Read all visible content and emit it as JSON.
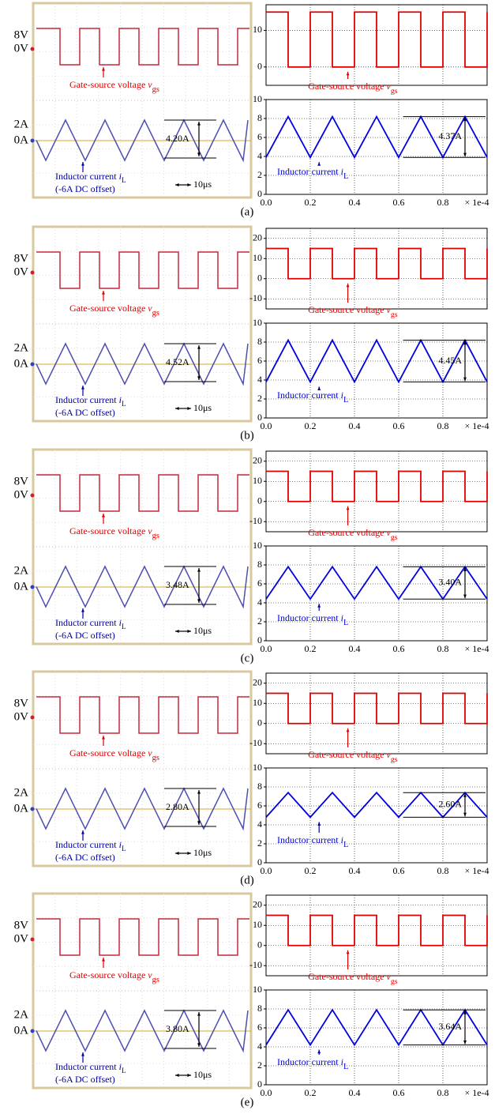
{
  "panel_labels": [
    "(a)",
    "(b)",
    "(c)",
    "(d)",
    "(e)"
  ],
  "scopes": [
    {
      "v_ticks": [
        "8V",
        "0V"
      ],
      "i_ticks": [
        "2A",
        "0A"
      ],
      "vgs_label": {
        "text": "Gate-source voltage ",
        "var": "v",
        "sub": "gs"
      },
      "il_label": {
        "text": "Inductor current ",
        "var": "i",
        "sub": "L"
      },
      "offset_note": "(-6A DC offset)",
      "time_scale": "10μs",
      "ripple": "4.20A"
    },
    {
      "v_ticks": [
        "8V",
        "0V"
      ],
      "i_ticks": [
        "2A",
        "0A"
      ],
      "vgs_label": {
        "text": "Gate-source voltage ",
        "var": "v",
        "sub": "gs"
      },
      "il_label": {
        "text": "Inductor current ",
        "var": "i",
        "sub": "L"
      },
      "offset_note": "(-6A DC offset)",
      "time_scale": "10μs",
      "ripple": "4.52A"
    },
    {
      "v_ticks": [
        "8V",
        "0V"
      ],
      "i_ticks": [
        "2A",
        "0A"
      ],
      "vgs_label": {
        "text": "Gate-source voltage ",
        "var": "v",
        "sub": "gs"
      },
      "il_label": {
        "text": "Inductor current ",
        "var": "i",
        "sub": "L"
      },
      "offset_note": "(-6A DC offset)",
      "time_scale": "10μs",
      "ripple": "3.48A"
    },
    {
      "v_ticks": [
        "8V",
        "0V"
      ],
      "i_ticks": [
        "2A",
        "0A"
      ],
      "vgs_label": {
        "text": "Gate-source voltage ",
        "var": "v",
        "sub": "gs"
      },
      "il_label": {
        "text": "Inductor current ",
        "var": "i",
        "sub": "L"
      },
      "offset_note": "(-6A DC offset)",
      "time_scale": "10μs",
      "ripple": "2.80A"
    },
    {
      "v_ticks": [
        "8V",
        "0V"
      ],
      "i_ticks": [
        "2A",
        "0A"
      ],
      "vgs_label": {
        "text": "Gate-source voltage ",
        "var": "v",
        "sub": "gs"
      },
      "il_label": {
        "text": "Inductor current ",
        "var": "i",
        "sub": "L"
      },
      "offset_note": "(-6A DC offset)",
      "time_scale": "10μs",
      "ripple": "3.80A"
    }
  ],
  "chart_data": [
    {
      "type": "line",
      "xlim": [
        0,
        1
      ],
      "xticks": [
        0.2,
        0.4,
        0.6,
        0.8
      ],
      "show_xtick_labels": false,
      "ylim": [
        -5,
        17
      ],
      "yticks": [
        0,
        10
      ],
      "grid": true,
      "x": [
        0,
        0.1,
        0.1,
        0.2,
        0.2,
        0.3,
        0.3,
        0.4,
        0.4,
        0.5,
        0.5,
        0.6,
        0.6,
        0.7,
        0.7,
        0.8,
        0.8,
        0.9,
        0.9,
        1,
        1
      ],
      "series": [
        {
          "color": "#e00000",
          "values": [
            15,
            15,
            0,
            0,
            15,
            15,
            0,
            0,
            15,
            15,
            0,
            0,
            15,
            15,
            0,
            0,
            15,
            15,
            0,
            0,
            15
          ]
        }
      ],
      "annotation": {
        "text": "Gate-source voltage ",
        "var": "v",
        "sub": "gs"
      }
    },
    {
      "type": "line",
      "xlim": [
        0,
        1
      ],
      "xticks": [
        {
          "value": 0,
          "label": "0.0"
        },
        {
          "value": 0.2,
          "label": "0.2"
        },
        {
          "value": 0.4,
          "label": "0.4"
        },
        {
          "value": 0.6,
          "label": "0.6"
        },
        {
          "value": 0.8,
          "label": "0.8"
        }
      ],
      "show_xtick_labels": true,
      "x_axis_label": "× 1e-4",
      "ylim": [
        0,
        10
      ],
      "yticks": [
        0,
        2,
        4,
        6,
        8,
        10
      ],
      "grid": true,
      "x": [
        0,
        0.1,
        0.2,
        0.3,
        0.4,
        0.5,
        0.6,
        0.7,
        0.8,
        0.9,
        1
      ],
      "series": [
        {
          "color": "#0000e0",
          "values": [
            3.9,
            8.2,
            3.9,
            8.2,
            3.9,
            8.2,
            3.9,
            8.2,
            3.9,
            8.2,
            3.9
          ]
        }
      ],
      "annotation": {
        "text": "Inductor current ",
        "var": "i",
        "sub": "L"
      },
      "ripple": "4.37A"
    },
    {
      "type": "line",
      "xlim": [
        0,
        1
      ],
      "xticks": [
        0.2,
        0.4,
        0.6,
        0.8
      ],
      "show_xtick_labels": false,
      "ylim": [
        -15,
        25
      ],
      "yticks": [
        -10,
        0,
        10,
        20
      ],
      "grid": true,
      "x": [
        0,
        0.1,
        0.1,
        0.2,
        0.2,
        0.3,
        0.3,
        0.4,
        0.4,
        0.5,
        0.5,
        0.6,
        0.6,
        0.7,
        0.7,
        0.8,
        0.8,
        0.9,
        0.9,
        1,
        1
      ],
      "series": [
        {
          "color": "#e00000",
          "values": [
            15,
            15,
            0,
            0,
            15,
            15,
            0,
            0,
            15,
            15,
            0,
            0,
            15,
            15,
            0,
            0,
            15,
            15,
            0,
            0,
            15
          ]
        }
      ],
      "annotation": {
        "text": "Gate-source voltage ",
        "var": "v",
        "sub": "gs"
      }
    },
    {
      "type": "line",
      "xlim": [
        0,
        1
      ],
      "xticks": [
        {
          "value": 0,
          "label": "0.0"
        },
        {
          "value": 0.2,
          "label": "0.2"
        },
        {
          "value": 0.4,
          "label": "0.4"
        },
        {
          "value": 0.6,
          "label": "0.6"
        },
        {
          "value": 0.8,
          "label": "0.8"
        }
      ],
      "show_xtick_labels": true,
      "x_axis_label": "× 1e-4",
      "ylim": [
        0,
        10
      ],
      "yticks": [
        0,
        2,
        4,
        6,
        8,
        10
      ],
      "grid": true,
      "x": [
        0,
        0.1,
        0.2,
        0.3,
        0.4,
        0.5,
        0.6,
        0.7,
        0.8,
        0.9,
        1
      ],
      "series": [
        {
          "color": "#0000e0",
          "values": [
            3.8,
            8.2,
            3.8,
            8.2,
            3.8,
            8.2,
            3.8,
            8.2,
            3.8,
            8.2,
            3.8
          ]
        }
      ],
      "annotation": {
        "text": "Inductor current ",
        "var": "i",
        "sub": "L"
      },
      "ripple": "4.45A"
    },
    {
      "type": "line",
      "xlim": [
        0,
        1
      ],
      "xticks": [
        0.2,
        0.4,
        0.6,
        0.8
      ],
      "show_xtick_labels": false,
      "ylim": [
        -15,
        25
      ],
      "yticks": [
        -10,
        0,
        10,
        20
      ],
      "grid": true,
      "x": [
        0,
        0.1,
        0.1,
        0.2,
        0.2,
        0.3,
        0.3,
        0.4,
        0.4,
        0.5,
        0.5,
        0.6,
        0.6,
        0.7,
        0.7,
        0.8,
        0.8,
        0.9,
        0.9,
        1,
        1
      ],
      "series": [
        {
          "color": "#e00000",
          "values": [
            15,
            15,
            0,
            0,
            15,
            15,
            0,
            0,
            15,
            15,
            0,
            0,
            15,
            15,
            0,
            0,
            15,
            15,
            0,
            0,
            15
          ]
        }
      ],
      "annotation": {
        "text": "Gate-source voltage ",
        "var": "v",
        "sub": "gs"
      }
    },
    {
      "type": "line",
      "xlim": [
        0,
        1
      ],
      "xticks": [
        {
          "value": 0,
          "label": "0.0"
        },
        {
          "value": 0.2,
          "label": "0.2"
        },
        {
          "value": 0.4,
          "label": "0.4"
        },
        {
          "value": 0.6,
          "label": "0.6"
        },
        {
          "value": 0.8,
          "label": "0.8"
        }
      ],
      "show_xtick_labels": true,
      "x_axis_label": "× 1e-4",
      "ylim": [
        0,
        10
      ],
      "yticks": [
        0,
        2,
        4,
        6,
        8,
        10
      ],
      "grid": true,
      "x": [
        0,
        0.1,
        0.2,
        0.3,
        0.4,
        0.5,
        0.6,
        0.7,
        0.8,
        0.9,
        1
      ],
      "series": [
        {
          "color": "#0000e0",
          "values": [
            4.4,
            7.8,
            4.4,
            7.8,
            4.4,
            7.8,
            4.4,
            7.8,
            4.4,
            7.8,
            4.4
          ]
        }
      ],
      "annotation": {
        "text": "Inductor current ",
        "var": "i",
        "sub": "L"
      },
      "ripple": "3.40A"
    },
    {
      "type": "line",
      "xlim": [
        0,
        1
      ],
      "xticks": [
        0.2,
        0.4,
        0.6,
        0.8
      ],
      "show_xtick_labels": false,
      "ylim": [
        -15,
        25
      ],
      "yticks": [
        -10,
        0,
        10,
        20
      ],
      "grid": true,
      "x": [
        0,
        0.1,
        0.1,
        0.2,
        0.2,
        0.3,
        0.3,
        0.4,
        0.4,
        0.5,
        0.5,
        0.6,
        0.6,
        0.7,
        0.7,
        0.8,
        0.8,
        0.9,
        0.9,
        1,
        1
      ],
      "series": [
        {
          "color": "#e00000",
          "values": [
            15,
            15,
            0,
            0,
            15,
            15,
            0,
            0,
            15,
            15,
            0,
            0,
            15,
            15,
            0,
            0,
            15,
            15,
            0,
            0,
            15
          ]
        }
      ],
      "annotation": {
        "text": "Gate-source voltage ",
        "var": "v",
        "sub": "gs"
      }
    },
    {
      "type": "line",
      "xlim": [
        0,
        1
      ],
      "xticks": [
        {
          "value": 0,
          "label": "0.0"
        },
        {
          "value": 0.2,
          "label": "0.2"
        },
        {
          "value": 0.4,
          "label": "0.4"
        },
        {
          "value": 0.6,
          "label": "0.6"
        },
        {
          "value": 0.8,
          "label": "0.8"
        }
      ],
      "show_xtick_labels": true,
      "x_axis_label": "× 1e-4",
      "ylim": [
        0,
        10
      ],
      "yticks": [
        0,
        2,
        4,
        6,
        8,
        10
      ],
      "grid": true,
      "x": [
        0,
        0.1,
        0.2,
        0.3,
        0.4,
        0.5,
        0.6,
        0.7,
        0.8,
        0.9,
        1
      ],
      "series": [
        {
          "color": "#0000e0",
          "values": [
            4.8,
            7.4,
            4.8,
            7.4,
            4.8,
            7.4,
            4.8,
            7.4,
            4.8,
            7.4,
            4.8
          ]
        }
      ],
      "annotation": {
        "text": "Inductor current ",
        "var": "i",
        "sub": "L"
      },
      "ripple": "2.60A"
    },
    {
      "type": "line",
      "xlim": [
        0,
        1
      ],
      "xticks": [
        0.2,
        0.4,
        0.6,
        0.8
      ],
      "show_xtick_labels": false,
      "ylim": [
        -15,
        25
      ],
      "yticks": [
        -10,
        0,
        10,
        20
      ],
      "grid": true,
      "x": [
        0,
        0.1,
        0.1,
        0.2,
        0.2,
        0.3,
        0.3,
        0.4,
        0.4,
        0.5,
        0.5,
        0.6,
        0.6,
        0.7,
        0.7,
        0.8,
        0.8,
        0.9,
        0.9,
        1,
        1
      ],
      "series": [
        {
          "color": "#e00000",
          "values": [
            15,
            15,
            0,
            0,
            15,
            15,
            0,
            0,
            15,
            15,
            0,
            0,
            15,
            15,
            0,
            0,
            15,
            15,
            0,
            0,
            15
          ]
        }
      ],
      "annotation": {
        "text": "Gate-source voltage ",
        "var": "v",
        "sub": "gs"
      }
    },
    {
      "type": "line",
      "xlim": [
        0,
        1
      ],
      "xticks": [
        {
          "value": 0,
          "label": "0.0"
        },
        {
          "value": 0.2,
          "label": "0.2"
        },
        {
          "value": 0.4,
          "label": "0.4"
        },
        {
          "value": 0.6,
          "label": "0.6"
        },
        {
          "value": 0.8,
          "label": "0.8"
        }
      ],
      "show_xtick_labels": true,
      "x_axis_label": "× 1e-4",
      "ylim": [
        0,
        10
      ],
      "yticks": [
        0,
        2,
        4,
        6,
        8,
        10
      ],
      "grid": true,
      "x": [
        0,
        0.1,
        0.2,
        0.3,
        0.4,
        0.5,
        0.6,
        0.7,
        0.8,
        0.9,
        1
      ],
      "series": [
        {
          "color": "#0000e0",
          "values": [
            4.2,
            7.9,
            4.2,
            7.9,
            4.2,
            7.9,
            4.2,
            7.9,
            4.2,
            7.9,
            4.2
          ]
        }
      ],
      "annotation": {
        "text": "Inductor current ",
        "var": "i",
        "sub": "L"
      },
      "ripple": "3.64A"
    }
  ]
}
